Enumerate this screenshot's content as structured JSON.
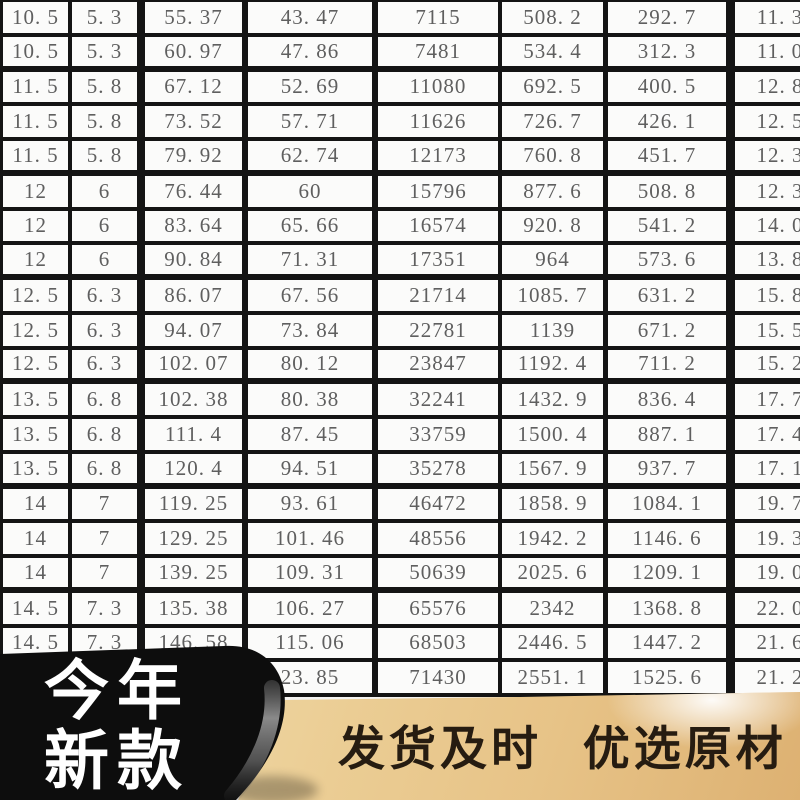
{
  "table": {
    "group_end_rows": [
      1,
      4,
      7,
      10,
      13,
      16
    ],
    "rows": [
      [
        "10. 5",
        "5. 3",
        "55. 37",
        "43. 47",
        "7115",
        "508. 2",
        "292. 7",
        "11. 3"
      ],
      [
        "10. 5",
        "5. 3",
        "60. 97",
        "47. 86",
        "7481",
        "534. 4",
        "312. 3",
        "11. 0"
      ],
      [
        "11. 5",
        "5. 8",
        "67. 12",
        "52. 69",
        "11080",
        "692. 5",
        "400. 5",
        "12. 8"
      ],
      [
        "11. 5",
        "5. 8",
        "73. 52",
        "57. 71",
        "11626",
        "726. 7",
        "426. 1",
        "12. 5"
      ],
      [
        "11. 5",
        "5. 8",
        "79. 92",
        "62. 74",
        "12173",
        "760. 8",
        "451. 7",
        "12. 3"
      ],
      [
        "12",
        "6",
        "76. 44",
        "60",
        "15796",
        "877. 6",
        "508. 8",
        "12. 3"
      ],
      [
        "12",
        "6",
        "83. 64",
        "65. 66",
        "16574",
        "920. 8",
        "541. 2",
        "14. 0"
      ],
      [
        "12",
        "6",
        "90. 84",
        "71. 31",
        "17351",
        "964",
        "573. 6",
        "13. 8"
      ],
      [
        "12. 5",
        "6. 3",
        "86. 07",
        "67. 56",
        "21714",
        "1085. 7",
        "631. 2",
        "15. 8"
      ],
      [
        "12. 5",
        "6. 3",
        "94. 07",
        "73. 84",
        "22781",
        "1139",
        "671. 2",
        "15. 5"
      ],
      [
        "12. 5",
        "6. 3",
        "102. 07",
        "80. 12",
        "23847",
        "1192. 4",
        "711. 2",
        "15. 2"
      ],
      [
        "13. 5",
        "6. 8",
        "102. 38",
        "80. 38",
        "32241",
        "1432. 9",
        "836. 4",
        "17. 7"
      ],
      [
        "13. 5",
        "6. 8",
        "111. 4",
        "87. 45",
        "33759",
        "1500. 4",
        "887. 1",
        "17. 4"
      ],
      [
        "13. 5",
        "6. 8",
        "120. 4",
        "94. 51",
        "35278",
        "1567. 9",
        "937. 7",
        "17. 1"
      ],
      [
        "14",
        "7",
        "119. 25",
        "93. 61",
        "46472",
        "1858. 9",
        "1084. 1",
        "19. 7"
      ],
      [
        "14",
        "7",
        "129. 25",
        "101. 46",
        "48556",
        "1942. 2",
        "1146. 6",
        "19. 3"
      ],
      [
        "14",
        "7",
        "139. 25",
        "109. 31",
        "50639",
        "2025. 6",
        "1209. 1",
        "19. 0"
      ],
      [
        "14. 5",
        "7. 3",
        "135. 38",
        "106. 27",
        "65576",
        "2342",
        "1368. 8",
        "22. 0"
      ],
      [
        "14. 5",
        "7. 3",
        "146. 58",
        "115. 06",
        "68503",
        "2446. 5",
        "1447. 2",
        "21. 6"
      ],
      [
        "",
        "",
        "",
        "23. 85",
        "71430",
        "2551. 1",
        "1525. 6",
        "21. 2"
      ]
    ]
  },
  "banner": {
    "line1": "今年",
    "line2": "新款",
    "gold_text": "发货及时  优选原材"
  },
  "colors": {
    "table_border": "#141414",
    "table_text": "#5f5f5f",
    "table_background": "#fbfbfa",
    "ribbon_black": "#0d0d0d",
    "ribbon_text": "#ffffff",
    "gold_light": "#f8f1da",
    "gold_mid": "#ebcd94",
    "gold_deep": "#ddb172",
    "gold_text": "#261c11"
  }
}
